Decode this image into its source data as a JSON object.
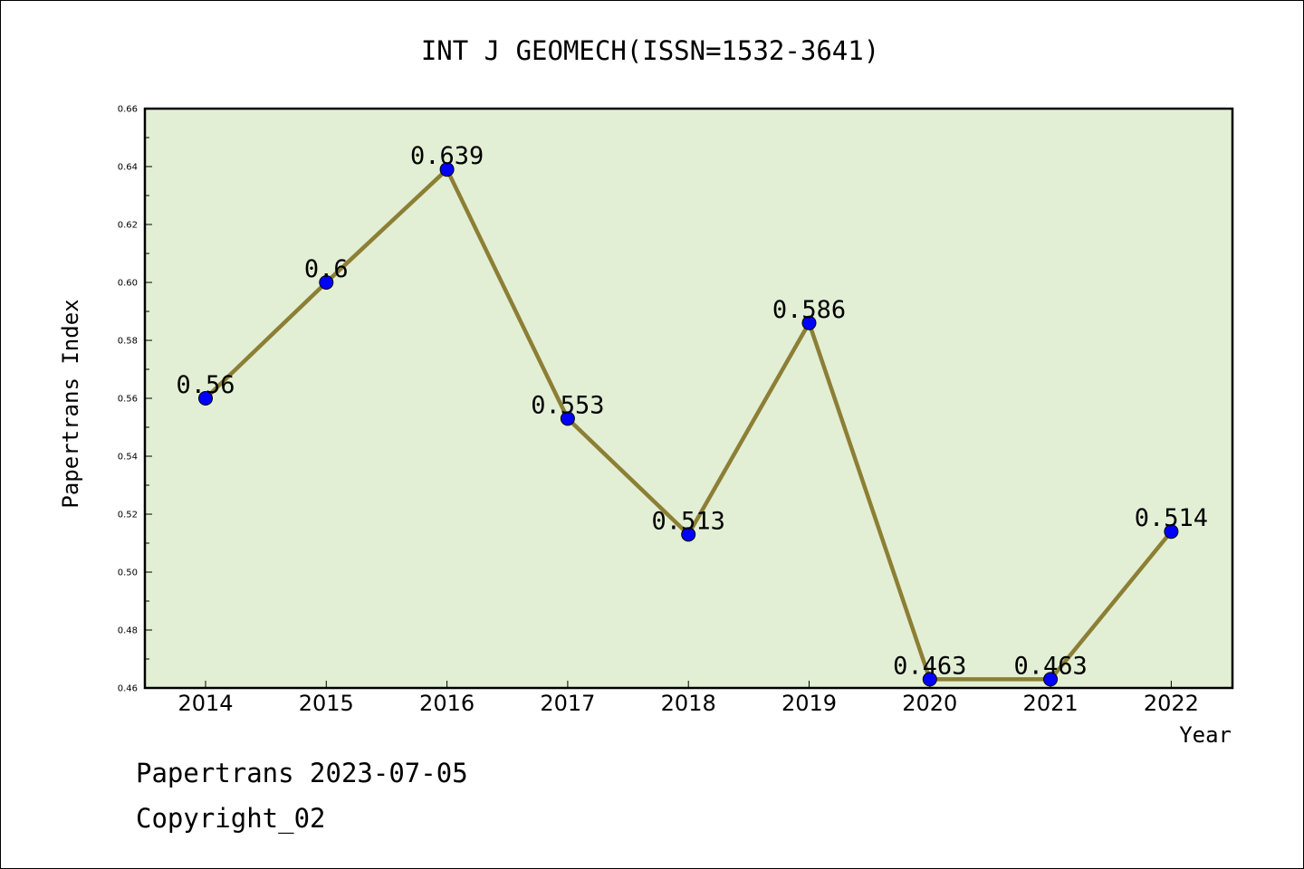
{
  "chart_data": {
    "type": "line",
    "title": "INT J GEOMECH(ISSN=1532-3641)",
    "xlabel": "Year",
    "ylabel": "Papertrans Index",
    "categories": [
      "2014",
      "2015",
      "2016",
      "2017",
      "2018",
      "2019",
      "2020",
      "2021",
      "2022"
    ],
    "values": [
      0.56,
      0.6,
      0.639,
      0.553,
      0.513,
      0.586,
      0.463,
      0.463,
      0.514
    ],
    "data_labels": [
      "0.56",
      "0.6",
      "0.639",
      "0.553",
      "0.513",
      "0.586",
      "0.463",
      "0.463",
      "0.514"
    ],
    "ylim": [
      0.46,
      0.66
    ],
    "yticks": [
      "0.46",
      "0.48",
      "0.50",
      "0.52",
      "0.54",
      "0.56",
      "0.58",
      "0.60",
      "0.62",
      "0.64",
      "0.66"
    ],
    "grid": false,
    "legend": "none",
    "colors": {
      "line": "#8c7f35",
      "marker": "#0000ff",
      "plot_background": "#e2efd4"
    }
  },
  "footer": {
    "line1": "Papertrans 2023-07-05",
    "line2": "Copyright_02"
  }
}
